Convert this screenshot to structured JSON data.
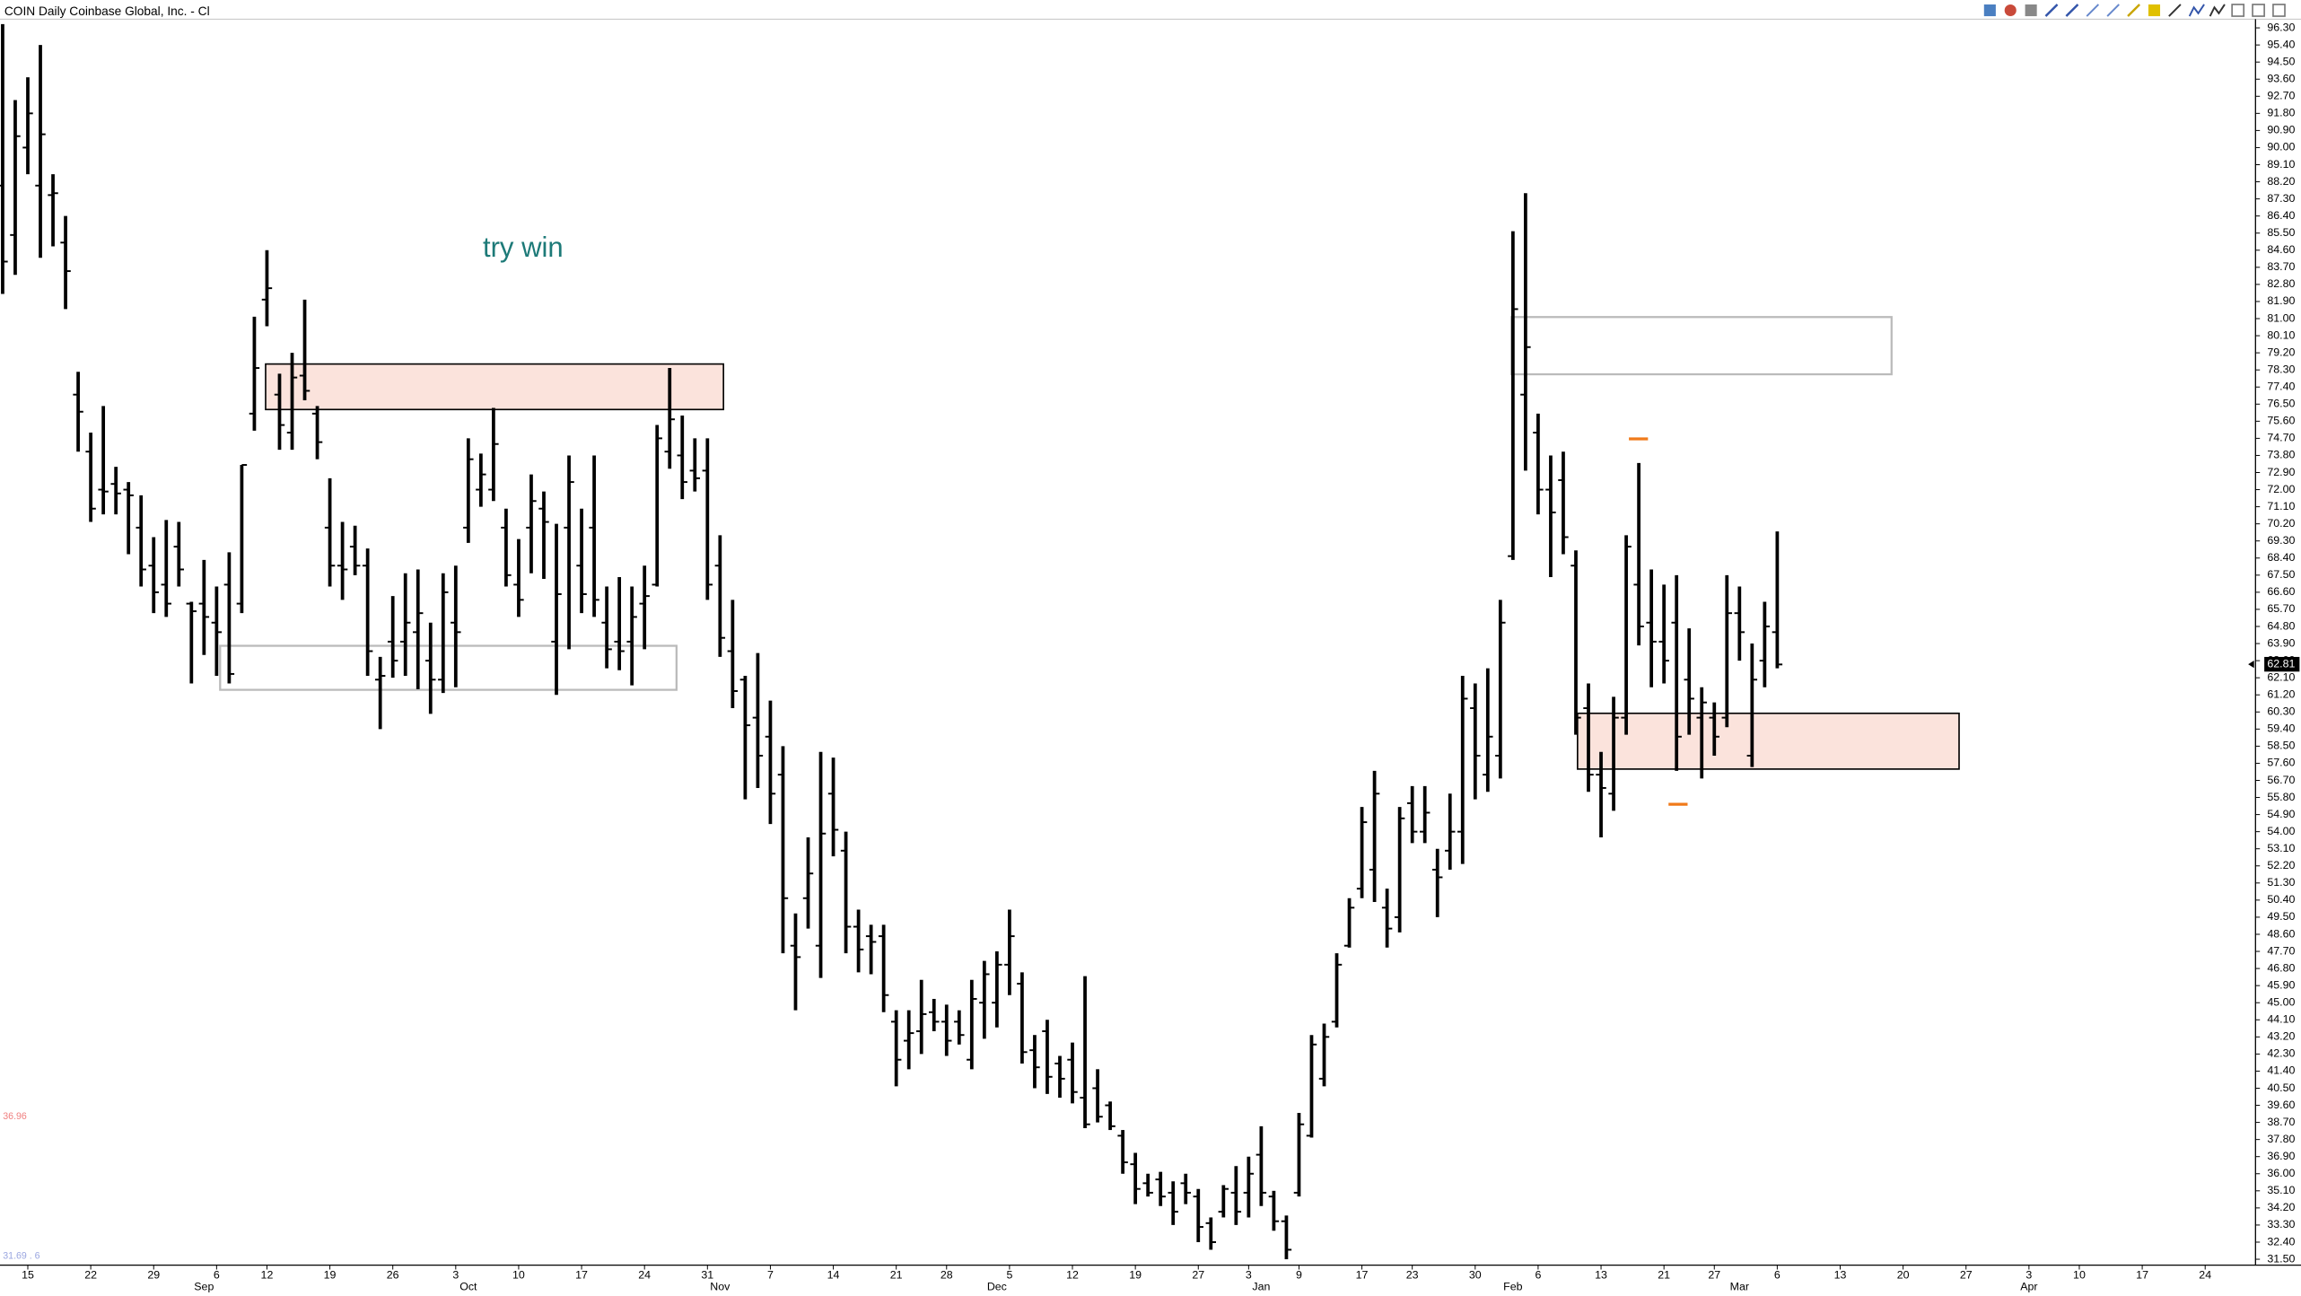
{
  "chart_data": {
    "type": "ohlc",
    "title": "COIN Daily Coinbase Global, Inc. - Cl",
    "annotation": "try win",
    "side_labels": [
      "36.96",
      "31.69 . 6"
    ],
    "last_price": 62.81,
    "color": "#000000",
    "ylim": [
      31.19,
      96.76
    ],
    "yticks": [
      {
        "value": 96.3,
        "label": "96.30"
      },
      {
        "value": 95.4,
        "label": "95.40"
      },
      {
        "value": 94.5,
        "label": "94.50"
      },
      {
        "value": 93.6,
        "label": "93.60"
      },
      {
        "value": 92.7,
        "label": "92.70"
      },
      {
        "value": 91.8,
        "label": "91.80"
      },
      {
        "value": 90.9,
        "label": "90.90"
      },
      {
        "value": 90.0,
        "label": "90.00"
      },
      {
        "value": 89.1,
        "label": "89.10"
      },
      {
        "value": 88.2,
        "label": "88.20"
      },
      {
        "value": 87.3,
        "label": "87.30"
      },
      {
        "value": 86.4,
        "label": "86.40"
      },
      {
        "value": 85.5,
        "label": "85.50"
      },
      {
        "value": 84.6,
        "label": "84.60"
      },
      {
        "value": 83.7,
        "label": "83.70"
      },
      {
        "value": 82.8,
        "label": "82.80"
      },
      {
        "value": 81.9,
        "label": "81.90"
      },
      {
        "value": 81.0,
        "label": "81.00"
      },
      {
        "value": 80.1,
        "label": "80.10"
      },
      {
        "value": 79.2,
        "label": "79.20"
      },
      {
        "value": 78.3,
        "label": "78.30"
      },
      {
        "value": 77.4,
        "label": "77.40"
      },
      {
        "value": 76.5,
        "label": "76.50"
      },
      {
        "value": 75.6,
        "label": "75.60"
      },
      {
        "value": 74.7,
        "label": "74.70"
      },
      {
        "value": 73.8,
        "label": "73.80"
      },
      {
        "value": 72.9,
        "label": "72.90"
      },
      {
        "value": 72.0,
        "label": "72.00"
      },
      {
        "value": 71.1,
        "label": "71.10"
      },
      {
        "value": 70.2,
        "label": "70.20"
      },
      {
        "value": 69.3,
        "label": "69.30"
      },
      {
        "value": 68.4,
        "label": "68.40"
      },
      {
        "value": 67.5,
        "label": "67.50"
      },
      {
        "value": 66.6,
        "label": "66.60"
      },
      {
        "value": 65.7,
        "label": "65.70"
      },
      {
        "value": 64.8,
        "label": "64.80"
      },
      {
        "value": 63.9,
        "label": "63.90"
      },
      {
        "value": 63.0,
        "label": "63.00"
      },
      {
        "value": 62.1,
        "label": "62.10"
      },
      {
        "value": 61.2,
        "label": "61.20"
      },
      {
        "value": 60.3,
        "label": "60.30"
      },
      {
        "value": 59.4,
        "label": "59.40"
      },
      {
        "value": 58.5,
        "label": "58.50"
      },
      {
        "value": 57.6,
        "label": "57.60"
      },
      {
        "value": 56.7,
        "label": "56.70"
      },
      {
        "value": 55.8,
        "label": "55.80"
      },
      {
        "value": 54.9,
        "label": "54.90"
      },
      {
        "value": 54.0,
        "label": "54.00"
      },
      {
        "value": 53.1,
        "label": "53.10"
      },
      {
        "value": 52.2,
        "label": "52.20"
      },
      {
        "value": 51.3,
        "label": "51.30"
      },
      {
        "value": 50.4,
        "label": "50.40"
      },
      {
        "value": 49.5,
        "label": "49.50"
      },
      {
        "value": 48.6,
        "label": "48.60"
      },
      {
        "value": 47.7,
        "label": "47.70"
      },
      {
        "value": 46.8,
        "label": "46.80"
      },
      {
        "value": 45.9,
        "label": "45.90"
      },
      {
        "value": 45.0,
        "label": "45.00"
      },
      {
        "value": 44.1,
        "label": "44.10"
      },
      {
        "value": 43.2,
        "label": "43.20"
      },
      {
        "value": 42.3,
        "label": "42.30"
      },
      {
        "value": 41.4,
        "label": "41.40"
      },
      {
        "value": 40.5,
        "label": "40.50"
      },
      {
        "value": 39.6,
        "label": "39.60"
      },
      {
        "value": 38.7,
        "label": "38.70"
      },
      {
        "value": 37.8,
        "label": "37.80"
      },
      {
        "value": 36.9,
        "label": "36.90"
      },
      {
        "value": 36.0,
        "label": "36.00"
      },
      {
        "value": 35.1,
        "label": "35.10"
      },
      {
        "value": 34.2,
        "label": "34.20"
      },
      {
        "value": 33.3,
        "label": "33.30"
      },
      {
        "value": 32.4,
        "label": "32.40"
      },
      {
        "value": 31.5,
        "label": "31.50"
      }
    ],
    "categories": [
      null,
      null,
      "15",
      null,
      null,
      null,
      null,
      "22",
      null,
      null,
      null,
      null,
      "29",
      null,
      null,
      null,
      null,
      "6",
      null,
      null,
      null,
      "12",
      null,
      null,
      null,
      null,
      "19",
      null,
      null,
      null,
      null,
      "26",
      null,
      null,
      null,
      null,
      "3",
      null,
      null,
      null,
      null,
      "10",
      null,
      null,
      null,
      null,
      "17",
      null,
      null,
      null,
      null,
      "24",
      null,
      null,
      null,
      null,
      "31",
      null,
      null,
      null,
      null,
      "7",
      null,
      null,
      null,
      null,
      "14",
      null,
      null,
      null,
      null,
      "21",
      null,
      null,
      null,
      "28",
      null,
      null,
      null,
      null,
      "5",
      null,
      null,
      null,
      null,
      "12",
      null,
      null,
      null,
      null,
      "19",
      null,
      null,
      null,
      null,
      "27",
      null,
      null,
      null,
      "3",
      null,
      null,
      null,
      "9",
      null,
      null,
      null,
      null,
      "17",
      null,
      null,
      null,
      "23",
      null,
      null,
      null,
      null,
      "30",
      null,
      null,
      null,
      null,
      "6",
      null,
      null,
      null,
      null,
      "13",
      null,
      null,
      null,
      null,
      "21",
      null,
      null,
      null,
      "27",
      null,
      null,
      null,
      null,
      "6",
      null,
      null,
      null,
      null,
      "13",
      null,
      null,
      null,
      null,
      "20",
      null,
      null,
      null,
      null,
      "27",
      null,
      null,
      null,
      null,
      "3",
      null,
      null,
      null,
      "10",
      null,
      null,
      null,
      null,
      "17",
      null,
      null,
      null,
      null,
      "24",
      null,
      null,
      null
    ],
    "months": [
      null,
      null,
      null,
      null,
      null,
      null,
      null,
      null,
      null,
      null,
      null,
      null,
      null,
      null,
      null,
      null,
      "Sep",
      null,
      null,
      null,
      null,
      null,
      null,
      null,
      null,
      null,
      null,
      null,
      null,
      null,
      null,
      null,
      null,
      null,
      null,
      null,
      null,
      "Oct",
      null,
      null,
      null,
      null,
      null,
      null,
      null,
      null,
      null,
      null,
      null,
      null,
      null,
      null,
      null,
      null,
      null,
      null,
      null,
      "Nov",
      null,
      null,
      null,
      null,
      null,
      null,
      null,
      null,
      null,
      null,
      null,
      null,
      null,
      null,
      null,
      null,
      null,
      null,
      null,
      null,
      null,
      "Dec",
      null,
      null,
      null,
      null,
      null,
      null,
      null,
      null,
      null,
      null,
      null,
      null,
      null,
      null,
      null,
      null,
      null,
      null,
      null,
      null,
      "Jan",
      null,
      null,
      null,
      null,
      null,
      null,
      null,
      null,
      null,
      null,
      null,
      null,
      null,
      null,
      null,
      null,
      null,
      null,
      null,
      "Feb",
      null,
      null,
      null,
      null,
      null,
      null,
      null,
      null,
      null,
      null,
      null,
      null,
      null,
      null,
      null,
      null,
      null,
      "Mar",
      null,
      null,
      null,
      null,
      null,
      null,
      null,
      null,
      null,
      null,
      null,
      null,
      null,
      null,
      null,
      null,
      null,
      null,
      null,
      null,
      null,
      null,
      "Apr",
      null,
      null,
      null,
      null,
      null,
      null,
      null,
      null,
      null,
      null,
      null,
      null,
      null,
      null,
      null,
      null,
      null
    ],
    "open": [
      88,
      85.4,
      90,
      88,
      87.5,
      85,
      77,
      74,
      72,
      72.3,
      72,
      70,
      68,
      67,
      69,
      66,
      66,
      65,
      67,
      66,
      76,
      82,
      77,
      75,
      78,
      76,
      70,
      68,
      69,
      68,
      62,
      64,
      64,
      64.5,
      63,
      62,
      65,
      70,
      72,
      72,
      70,
      67,
      70,
      71,
      64,
      70,
      68,
      70,
      65,
      64,
      64,
      66,
      67,
      74,
      73.8,
      73,
      73,
      68,
      63.5,
      62,
      60,
      59,
      57,
      48,
      50.5,
      48,
      56,
      53,
      49,
      48.5,
      48.5,
      44,
      43,
      43.5,
      44.5,
      44,
      44,
      42,
      45,
      45,
      47,
      46,
      42.5,
      43.5,
      41.8,
      42,
      40,
      40.5,
      39.6,
      38,
      36.5,
      35.5,
      35.7,
      35,
      35.5,
      34.8,
      33.4,
      34,
      35,
      35,
      37,
      34.8,
      33.5,
      35,
      38,
      41,
      44,
      48,
      51,
      52,
      50,
      49.5,
      55.5,
      54,
      52,
      53,
      54,
      60.5,
      57,
      58,
      68.5,
      77,
      75,
      72,
      72.5,
      68,
      60.5,
      57,
      56,
      60,
      67,
      65,
      64,
      65,
      62,
      60,
      60,
      60,
      65.5,
      58,
      63,
      64.5,
      null,
      null,
      null,
      null,
      null,
      null,
      null,
      null,
      null,
      null,
      null,
      null,
      null,
      null,
      null,
      null,
      null,
      null,
      null,
      null,
      null,
      null,
      null,
      null,
      null,
      null,
      null,
      null,
      null,
      null,
      null,
      null,
      null,
      null,
      null,
      null,
      null
    ],
    "high": [
      96.5,
      92.5,
      93.7,
      95.4,
      88.6,
      86.4,
      78.2,
      75.0,
      76.4,
      73.2,
      72.4,
      71.7,
      69.5,
      70.4,
      70.3,
      66.1,
      68.3,
      66.9,
      68.7,
      73.3,
      81.1,
      84.6,
      78.1,
      79.2,
      82.0,
      76.4,
      72.6,
      70.3,
      70.1,
      68.9,
      63.2,
      66.4,
      67.6,
      67.8,
      65.0,
      67.6,
      68.0,
      74.7,
      73.9,
      76.3,
      71.0,
      69.4,
      72.8,
      71.9,
      70.2,
      73.8,
      71.0,
      73.8,
      66.9,
      67.4,
      66.9,
      68.0,
      75.4,
      78.4,
      75.9,
      74.7,
      74.7,
      69.6,
      66.2,
      62.2,
      63.4,
      60.9,
      58.5,
      49.7,
      53.7,
      58.2,
      57.9,
      54.0,
      49.9,
      49.1,
      49.1,
      44.6,
      44.6,
      46.2,
      45.2,
      44.9,
      44.6,
      46.2,
      47.2,
      47.7,
      49.9,
      46.6,
      43.3,
      44.1,
      42.2,
      42.9,
      46.4,
      41.5,
      39.8,
      38.3,
      37.1,
      36.0,
      36.1,
      35.6,
      36.0,
      35.2,
      33.7,
      35.4,
      36.4,
      36.9,
      38.5,
      35.1,
      33.8,
      39.2,
      43.3,
      43.9,
      47.6,
      50.5,
      55.3,
      57.2,
      51.0,
      55.3,
      56.4,
      56.4,
      53.1,
      56.0,
      62.2,
      61.8,
      62.6,
      66.2,
      85.6,
      87.6,
      76.0,
      73.8,
      74.0,
      68.8,
      61.8,
      58.2,
      61.1,
      69.6,
      73.4,
      67.8,
      67.0,
      67.5,
      64.7,
      61.6,
      60.8,
      67.5,
      66.9,
      63.9,
      66.1,
      69.8,
      null,
      null,
      null,
      null,
      null,
      null,
      null,
      null,
      null,
      null,
      null,
      null,
      null,
      null,
      null,
      null,
      null,
      null,
      null,
      null,
      null,
      null,
      null,
      null,
      null,
      null,
      null,
      null,
      null,
      null,
      null,
      null,
      null,
      null,
      null,
      null,
      null
    ],
    "low": [
      82.3,
      83.3,
      88.6,
      84.2,
      84.8,
      81.5,
      74.0,
      70.3,
      70.7,
      70.7,
      68.6,
      66.9,
      65.5,
      65.3,
      66.9,
      61.8,
      63.3,
      62.2,
      61.8,
      65.5,
      75.1,
      80.6,
      74.1,
      74.1,
      76.7,
      73.6,
      66.9,
      66.2,
      67.5,
      62.2,
      59.4,
      62.1,
      62.2,
      61.5,
      60.2,
      61.3,
      61.6,
      69.2,
      71.1,
      71.4,
      66.9,
      65.3,
      67.6,
      67.3,
      61.2,
      63.6,
      65.5,
      65.3,
      62.6,
      62.5,
      61.7,
      63.6,
      66.9,
      73.1,
      71.5,
      71.9,
      66.2,
      63.2,
      60.5,
      55.7,
      56.3,
      54.4,
      47.6,
      44.6,
      48.9,
      46.3,
      52.7,
      47.6,
      46.6,
      46.5,
      44.5,
      40.6,
      41.5,
      42.3,
      43.5,
      42.2,
      42.8,
      41.5,
      43.1,
      43.7,
      45.4,
      41.8,
      40.5,
      40.2,
      40.0,
      39.7,
      38.4,
      38.7,
      38.3,
      36.0,
      34.4,
      34.8,
      34.3,
      33.3,
      34.4,
      32.4,
      32.0,
      33.7,
      33.3,
      33.7,
      34.3,
      33.0,
      31.5,
      34.8,
      37.9,
      40.6,
      43.7,
      47.9,
      50.5,
      50.3,
      47.9,
      48.7,
      53.4,
      53.4,
      49.5,
      52.0,
      52.3,
      55.7,
      56.1,
      56.8,
      68.3,
      73.0,
      70.7,
      67.4,
      68.6,
      59.1,
      56.1,
      53.7,
      55.1,
      59.1,
      63.8,
      61.6,
      61.8,
      57.2,
      59.1,
      56.8,
      58.0,
      59.5,
      63.0,
      57.4,
      61.6,
      62.6,
      null,
      null,
      null,
      null,
      null,
      null,
      null,
      null,
      null,
      null,
      null,
      null,
      null,
      null,
      null,
      null,
      null,
      null,
      null,
      null,
      null,
      null,
      null,
      null,
      null,
      null,
      null,
      null,
      null,
      null,
      null,
      null,
      null,
      null,
      null,
      null,
      null
    ],
    "close": [
      84.0,
      90.6,
      91.8,
      90.7,
      87.6,
      83.5,
      76.1,
      71.0,
      71.9,
      71.8,
      71.7,
      67.8,
      66.6,
      66.0,
      67.8,
      65.6,
      65.3,
      64.5,
      62.3,
      73.3,
      78.4,
      82.6,
      75.4,
      77.9,
      77.2,
      74.5,
      68.0,
      67.8,
      68.0,
      63.5,
      62.2,
      63.0,
      65.0,
      65.5,
      62.0,
      66.6,
      64.5,
      73.6,
      72.8,
      74.4,
      67.5,
      66.2,
      71.4,
      70.3,
      66.5,
      72.4,
      66.5,
      66.2,
      63.6,
      63.5,
      65.3,
      66.4,
      74.7,
      75.7,
      72.4,
      72.6,
      67.0,
      64.2,
      61.4,
      59.6,
      58.0,
      56.0,
      50.5,
      47.4,
      51.8,
      53.9,
      54.1,
      49.0,
      47.8,
      48.2,
      45.4,
      42.0,
      43.4,
      44.4,
      44.0,
      43.0,
      43.3,
      45.2,
      46.5,
      47.0,
      48.5,
      42.4,
      41.6,
      41.1,
      41.0,
      40.3,
      38.6,
      39.0,
      38.5,
      36.6,
      35.2,
      35.0,
      34.8,
      34.0,
      35.0,
      33.2,
      32.4,
      35.2,
      34.0,
      36.0,
      35.0,
      33.5,
      32.0,
      38.6,
      42.8,
      43.2,
      47.0,
      50.0,
      54.5,
      56.0,
      48.9,
      54.7,
      54.0,
      55.0,
      51.6,
      54.0,
      61.0,
      58.0,
      59.0,
      65.0,
      81.5,
      79.5,
      72.0,
      70.8,
      69.5,
      60.0,
      57.0,
      56.3,
      60.0,
      69.0,
      64.8,
      64.0,
      63.0,
      59.0,
      61.0,
      60.8,
      59.0,
      65.5,
      64.5,
      62.0,
      64.8,
      62.8,
      null,
      null,
      null,
      null,
      null,
      null,
      null,
      null,
      null,
      null,
      null,
      null,
      null,
      null,
      null,
      null,
      null,
      null,
      null,
      null,
      null,
      null,
      null,
      null,
      null,
      null,
      null,
      null,
      null,
      null,
      null,
      null,
      null,
      null,
      null,
      null,
      null
    ]
  }
}
